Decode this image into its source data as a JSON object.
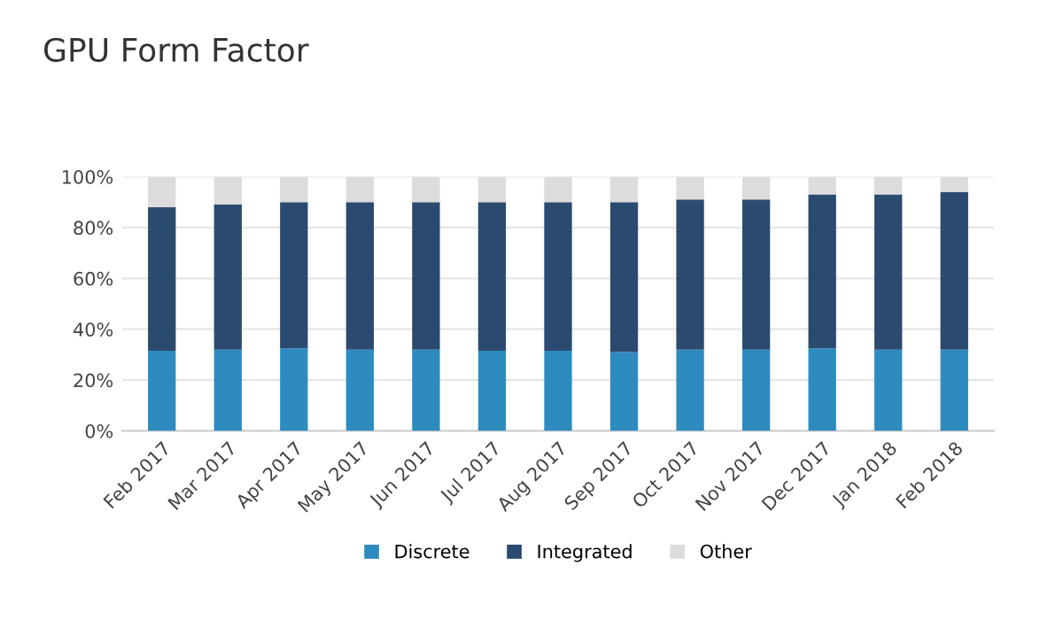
{
  "chart_data": {
    "type": "bar",
    "title": "GPU Form Factor",
    "stacked": true,
    "categories": [
      "Feb 2017",
      "Mar 2017",
      "Apr 2017",
      "May 2017",
      "Jun 2017",
      "Jul 2017",
      "Aug 2017",
      "Sep 2017",
      "Oct 2017",
      "Nov 2017",
      "Dec 2017",
      "Jan 2018",
      "Feb 2018"
    ],
    "series": [
      {
        "name": "Discrete",
        "color": "#2e8bc0",
        "values": [
          31.5,
          32,
          32.5,
          32,
          32,
          31.5,
          31.5,
          31,
          32,
          32,
          32.5,
          32,
          32
        ]
      },
      {
        "name": "Integrated",
        "color": "#2b4a70",
        "values": [
          56.5,
          57,
          57.5,
          58,
          58,
          58.5,
          58.5,
          59,
          59,
          59,
          60.5,
          61,
          62
        ]
      },
      {
        "name": "Other",
        "color": "#dcdcdc",
        "values": [
          12,
          11,
          10,
          10,
          10,
          10,
          10,
          10,
          9,
          9,
          7,
          7,
          6
        ]
      }
    ],
    "ylim": [
      0,
      100
    ],
    "yticks": [
      {
        "value": 0,
        "label": "0%"
      },
      {
        "value": 20,
        "label": "20%"
      },
      {
        "value": 40,
        "label": "40%"
      },
      {
        "value": 60,
        "label": "60%"
      },
      {
        "value": 80,
        "label": "80%"
      },
      {
        "value": 100,
        "label": "100%"
      }
    ],
    "grid": "y",
    "legend": "bottom"
  }
}
